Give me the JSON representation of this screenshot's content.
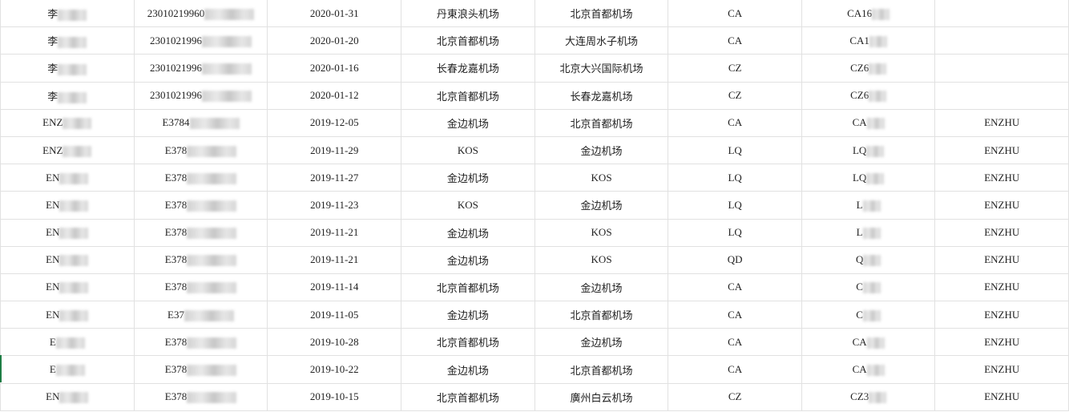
{
  "rows": [
    {
      "name": "李",
      "id": "23010219960",
      "date": "2020-01-31",
      "from": "丹東浪头机场",
      "to": "北京首都机场",
      "airline": "CA",
      "flight": "CA16",
      "extra": ""
    },
    {
      "name": "李",
      "id": "2301021996",
      "date": "2020-01-20",
      "from": "北京首都机场",
      "to": "大连周水子机场",
      "airline": "CA",
      "flight": "CA1",
      "extra": ""
    },
    {
      "name": "李",
      "id": "2301021996",
      "date": "2020-01-16",
      "from": "长春龙嘉机场",
      "to": "北京大兴国际机场",
      "airline": "CZ",
      "flight": "CZ6",
      "extra": ""
    },
    {
      "name": "李",
      "id": "2301021996",
      "date": "2020-01-12",
      "from": "北京首都机场",
      "to": "长春龙嘉机场",
      "airline": "CZ",
      "flight": "CZ6",
      "extra": ""
    },
    {
      "name": "ENZ",
      "id": "E3784",
      "date": "2019-12-05",
      "from": "金边机场",
      "to": "北京首都机场",
      "airline": "CA",
      "flight": "CA",
      "extra": "ENZHU"
    },
    {
      "name": "ENZ",
      "id": "E378",
      "date": "2019-11-29",
      "from": "KOS",
      "to": "金边机场",
      "airline": "LQ",
      "flight": "LQ",
      "extra": "ENZHU"
    },
    {
      "name": "EN",
      "id": "E378",
      "date": "2019-11-27",
      "from": "金边机场",
      "to": "KOS",
      "airline": "LQ",
      "flight": "LQ",
      "extra": "ENZHU"
    },
    {
      "name": "EN",
      "id": "E378",
      "date": "2019-11-23",
      "from": "KOS",
      "to": "金边机场",
      "airline": "LQ",
      "flight": "L",
      "extra": "ENZHU"
    },
    {
      "name": "EN",
      "id": "E378",
      "date": "2019-11-21",
      "from": "金边机场",
      "to": "KOS",
      "airline": "LQ",
      "flight": "L",
      "extra": "ENZHU"
    },
    {
      "name": "EN",
      "id": "E378",
      "date": "2019-11-21",
      "from": "金边机场",
      "to": "KOS",
      "airline": "QD",
      "flight": "Q",
      "extra": "ENZHU"
    },
    {
      "name": "EN",
      "id": "E378",
      "date": "2019-11-14",
      "from": "北京首都机场",
      "to": "金边机场",
      "airline": "CA",
      "flight": "C",
      "extra": "ENZHU"
    },
    {
      "name": "EN",
      "id": "E37",
      "date": "2019-11-05",
      "from": "金边机场",
      "to": "北京首都机场",
      "airline": "CA",
      "flight": "C",
      "extra": "ENZHU"
    },
    {
      "name": "E",
      "id": "E378",
      "date": "2019-10-28",
      "from": "北京首都机场",
      "to": "金边机场",
      "airline": "CA",
      "flight": "CA",
      "extra": "ENZHU"
    },
    {
      "name": "E",
      "id": "E378",
      "date": "2019-10-22",
      "from": "金边机场",
      "to": "北京首都机场",
      "airline": "CA",
      "flight": "CA",
      "extra": "ENZHU"
    },
    {
      "name": "EN",
      "id": "E378",
      "date": "2019-10-15",
      "from": "北京首都机场",
      "to": "廣州白云机场",
      "airline": "CZ",
      "flight": "CZ3",
      "extra": "ENZHU"
    }
  ],
  "colors": {
    "gridline": "#e1e1e1",
    "selection": "#1e7d45"
  }
}
